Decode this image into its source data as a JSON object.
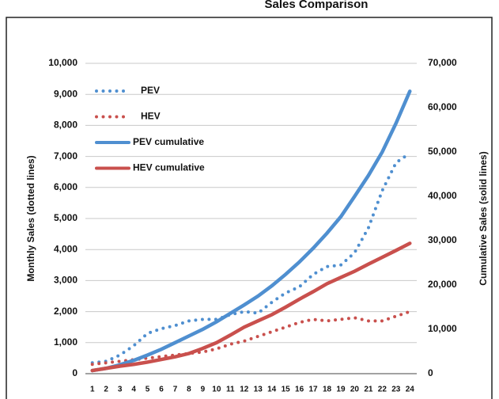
{
  "chart_data": {
    "type": "line",
    "title": "Sales Comparison",
    "ylabel": "Monthly Sales (dotted lines)",
    "y2label": "Cumulative Sales (solid lines)",
    "categories": [
      "1",
      "2",
      "3",
      "4",
      "5",
      "6",
      "7",
      "8",
      "9",
      "10",
      "11",
      "12",
      "13",
      "14",
      "15",
      "16",
      "17",
      "18",
      "19",
      "20",
      "21",
      "22",
      "23",
      "24"
    ],
    "ylim": [
      0,
      10000
    ],
    "yticks": [
      0,
      {
        "value": 1000,
        "label": "1,000"
      },
      {
        "value": 2000,
        "label": "2,000"
      },
      {
        "value": 3000,
        "label": "3,000"
      },
      {
        "value": 4000,
        "label": "4,000"
      },
      {
        "value": 5000,
        "label": "5,000"
      },
      {
        "value": 6000,
        "label": "6,000"
      },
      {
        "value": 7000,
        "label": "7,000"
      },
      {
        "value": 8000,
        "label": "8,000"
      },
      {
        "value": 9000,
        "label": "9,000"
      },
      {
        "value": 10000,
        "label": "10,000"
      }
    ],
    "y2lim": [
      0,
      70000
    ],
    "y2ticks": [
      0,
      {
        "value": 10000,
        "label": "10,000"
      },
      {
        "value": 20000,
        "label": "20,000"
      },
      {
        "value": 30000,
        "label": "30,000"
      },
      {
        "value": 40000,
        "label": "40,000"
      },
      {
        "value": 50000,
        "label": "50,000"
      },
      {
        "value": 60000,
        "label": "60,000"
      },
      {
        "value": 70000,
        "label": "70,000"
      }
    ],
    "grid": true,
    "series": [
      {
        "name": "PEV",
        "color": "#4f8fd0",
        "style": "dotted",
        "values": [
          350,
          400,
          600,
          900,
          1300,
          1450,
          1550,
          1700,
          1750,
          1750,
          1900,
          2000,
          1950,
          2300,
          2600,
          2800,
          3200,
          3450,
          3500,
          3900,
          4700,
          5900,
          6800,
          7100
        ]
      },
      {
        "name": "HEV",
        "color": "#c9504d",
        "style": "dotted",
        "values": [
          300,
          350,
          400,
          450,
          500,
          550,
          600,
          650,
          700,
          800,
          950,
          1050,
          1200,
          1350,
          1500,
          1650,
          1750,
          1700,
          1750,
          1800,
          1700,
          1700,
          1850,
          2000
        ]
      },
      {
        "name": "PEV cumulative",
        "color": "#4f8fd0",
        "style": "solid",
        "axis": "y2",
        "values": [
          700,
          1200,
          2000,
          3000,
          4200,
          5500,
          7000,
          8500,
          10000,
          11700,
          13600,
          15500,
          17500,
          19800,
          22400,
          25200,
          28300,
          31700,
          35400,
          40000,
          44700,
          50000,
          56500,
          63700
        ]
      },
      {
        "name": "HEV cumulative",
        "color": "#c9504d",
        "style": "solid",
        "axis": "y2",
        "values": [
          700,
          1200,
          1700,
          2100,
          2600,
          3200,
          3800,
          4550,
          5700,
          7000,
          8700,
          10500,
          11900,
          13300,
          15000,
          16800,
          18500,
          20300,
          21700,
          23100,
          24700,
          26250,
          27800,
          29400
        ]
      }
    ]
  }
}
